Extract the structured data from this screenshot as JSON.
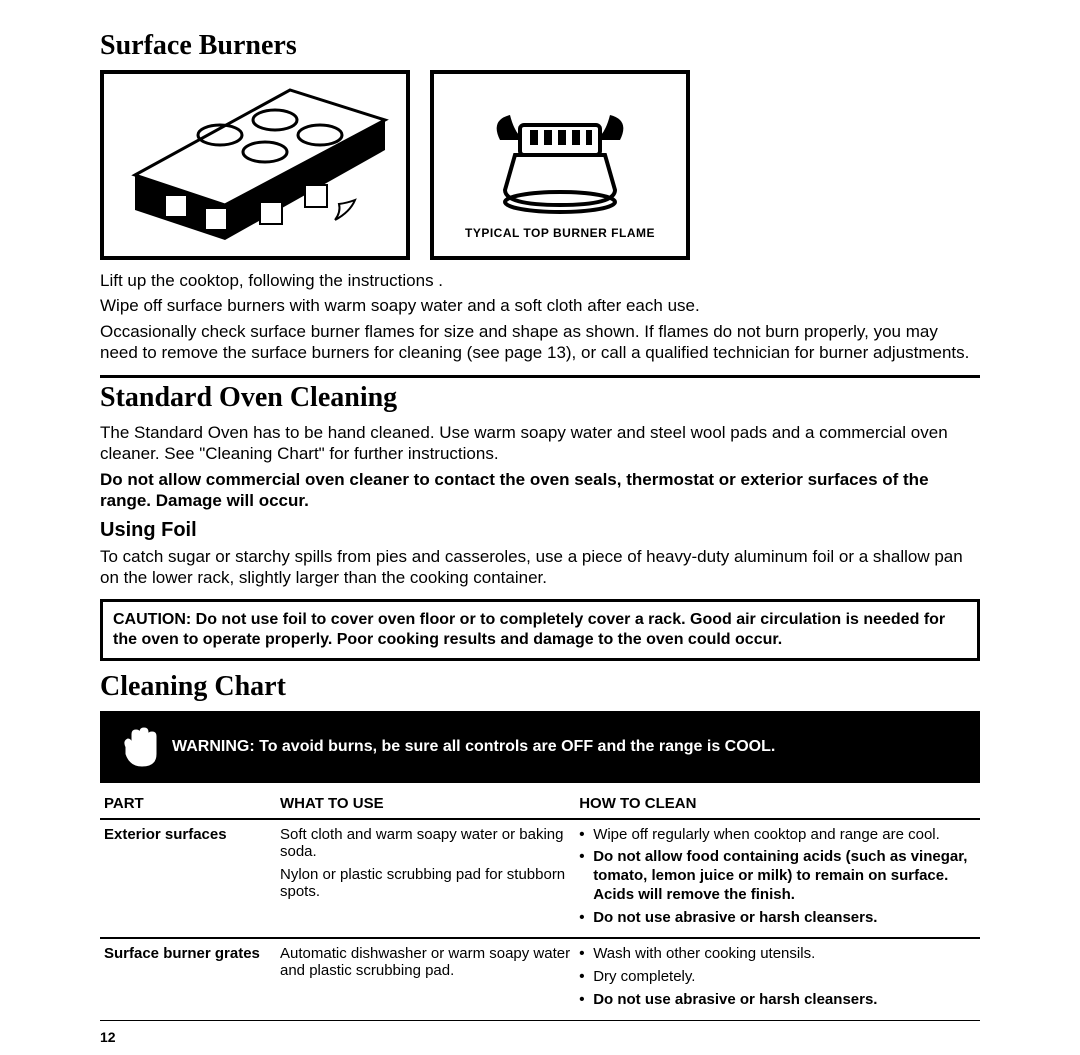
{
  "section1": {
    "title": "Surface Burners",
    "fig2_caption": "TYPICAL TOP BURNER FLAME",
    "p1": "Lift up the cooktop, following the instructions .",
    "p2": "Wipe off surface burners with warm soapy water and a soft cloth after each use.",
    "p3": "Occasionally check surface burner flames for size and shape as shown. If flames do not burn properly, you may need to remove the surface burners for cleaning (see page 13), or call a qualified technician for burner adjustments."
  },
  "section2": {
    "title": "Standard Oven Cleaning",
    "p1": "The Standard Oven has to be hand cleaned. Use warm soapy water and steel wool pads and a commercial oven cleaner. See \"Cleaning Chart\" for further instructions.",
    "p2_bold": "Do not allow commercial oven cleaner to contact the oven seals, thermostat or exterior surfaces of the range. Damage will occur.",
    "sub": "Using Foil",
    "p3": "To catch sugar or starchy spills from pies and casseroles, use a piece of heavy-duty aluminum foil or a shallow pan on the lower rack, slightly larger than the cooking container.",
    "caution": "CAUTION: Do not use foil to cover oven floor or to completely cover a rack. Good air circulation is needed for the oven to operate properly. Poor cooking results and damage to the oven could occur."
  },
  "section3": {
    "title": "Cleaning Chart",
    "warning": "WARNING: To avoid burns, be sure all controls are OFF and the range is COOL.",
    "headers": {
      "part": "PART",
      "what": "WHAT TO USE",
      "how": "HOW TO CLEAN"
    },
    "rows": [
      {
        "part": "Exterior surfaces",
        "what1": "Soft cloth and warm soapy water or baking soda.",
        "what2": "Nylon or plastic scrubbing pad for stubborn spots.",
        "how": [
          {
            "text": "Wipe off regularly when cooktop and range are cool.",
            "bold": false
          },
          {
            "text": "Do not allow food containing acids (such as vinegar, tomato, lemon juice or milk) to remain on surface. Acids will remove the finish.",
            "bold": true
          },
          {
            "text": "Do not use abrasive or harsh cleansers.",
            "bold": true
          }
        ]
      },
      {
        "part": "Surface burner grates",
        "what1": "Automatic dishwasher or warm soapy water and plastic scrubbing pad.",
        "what2": "",
        "how": [
          {
            "text": "Wash with other cooking utensils.",
            "bold": false
          },
          {
            "text": "Dry completely.",
            "bold": false
          },
          {
            "text": "Do not use abrasive or harsh cleansers.",
            "bold": true
          }
        ]
      }
    ]
  },
  "page_number": "12"
}
